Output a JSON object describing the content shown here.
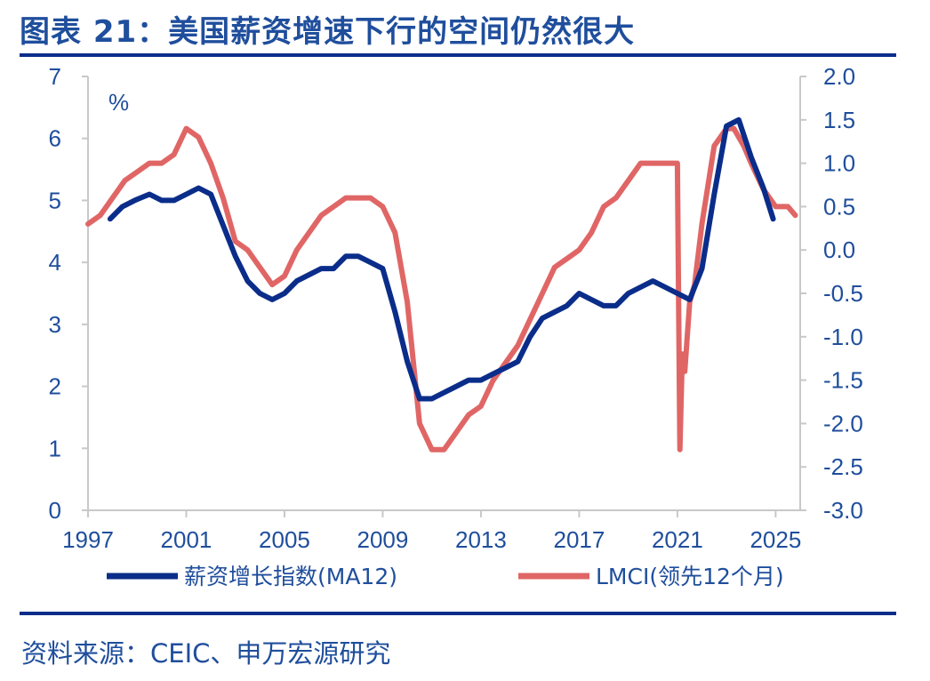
{
  "title": "图表 21：美国薪资增速下行的空间仍然很大",
  "source": "资料来源：CEIC、申万宏源研究",
  "chart_data": {
    "type": "line",
    "unit_label": "%",
    "x_ticks": [
      "1997",
      "2001",
      "2005",
      "2009",
      "2013",
      "2017",
      "2021",
      "2025"
    ],
    "x_range": [
      1997,
      2026
    ],
    "y_left": {
      "range": [
        0,
        7
      ],
      "ticks": [
        "0",
        "1",
        "2",
        "3",
        "4",
        "5",
        "6",
        "7"
      ]
    },
    "y_right": {
      "range": [
        -3.0,
        2.0
      ],
      "ticks": [
        "-3.0",
        "-2.5",
        "-2.0",
        "-1.5",
        "-1.0",
        "-0.5",
        "0.0",
        "0.5",
        "1.0",
        "1.5",
        "2.0"
      ]
    },
    "grid": false,
    "legend_position": "bottom",
    "series": [
      {
        "name": "薪资增长指数(MA12)",
        "axis": "left",
        "color": "#0b2d8a",
        "x": [
          1997.9,
          1998.4,
          1998.9,
          1999.5,
          2000.0,
          2000.5,
          2001.0,
          2001.5,
          2002.0,
          2002.5,
          2003.0,
          2003.5,
          2004.0,
          2004.5,
          2005.0,
          2005.5,
          2006.0,
          2006.5,
          2007.0,
          2007.5,
          2008.0,
          2008.5,
          2009.0,
          2009.5,
          2010.0,
          2010.5,
          2011.0,
          2011.5,
          2012.0,
          2012.5,
          2013.0,
          2013.5,
          2014.0,
          2014.5,
          2015.0,
          2015.5,
          2016.0,
          2016.5,
          2017.0,
          2017.5,
          2018.0,
          2018.5,
          2019.0,
          2019.5,
          2020.0,
          2020.5,
          2021.0,
          2021.5,
          2022.0,
          2022.5,
          2023.0,
          2023.5,
          2024.0,
          2024.5,
          2024.9
        ],
        "values": [
          4.7,
          4.9,
          5.0,
          5.1,
          5.0,
          5.0,
          5.1,
          5.2,
          5.1,
          4.6,
          4.1,
          3.7,
          3.5,
          3.4,
          3.5,
          3.7,
          3.8,
          3.9,
          3.9,
          4.1,
          4.1,
          4.0,
          3.9,
          3.2,
          2.4,
          1.8,
          1.8,
          1.9,
          2.0,
          2.1,
          2.1,
          2.2,
          2.3,
          2.4,
          2.8,
          3.1,
          3.2,
          3.3,
          3.5,
          3.4,
          3.3,
          3.3,
          3.5,
          3.6,
          3.7,
          3.6,
          3.5,
          3.4,
          3.9,
          5.1,
          6.2,
          6.3,
          5.7,
          5.2,
          4.7
        ]
      },
      {
        "name": "LMCI(领先12个月)",
        "axis": "right",
        "color": "#e06666",
        "x": [
          1997.0,
          1997.5,
          1998.0,
          1998.5,
          1999.0,
          1999.5,
          2000.0,
          2000.5,
          2001.0,
          2001.5,
          2002.0,
          2002.5,
          2003.0,
          2003.5,
          2004.0,
          2004.5,
          2005.0,
          2005.5,
          2006.0,
          2006.5,
          2007.0,
          2007.5,
          2008.0,
          2008.5,
          2009.0,
          2009.5,
          2010.0,
          2010.5,
          2011.0,
          2011.5,
          2012.0,
          2012.5,
          2013.0,
          2013.5,
          2014.0,
          2014.5,
          2015.0,
          2015.5,
          2016.0,
          2016.5,
          2017.0,
          2017.5,
          2018.0,
          2018.5,
          2019.0,
          2019.5,
          2020.0,
          2020.5,
          2021.0,
          2021.1,
          2021.2,
          2021.3,
          2021.5,
          2021.7,
          2022.0,
          2022.5,
          2023.0,
          2023.3,
          2023.7,
          2024.0,
          2024.5,
          2025.0,
          2025.5,
          2025.8
        ],
        "values": [
          0.3,
          0.4,
          0.6,
          0.8,
          0.9,
          1.0,
          1.0,
          1.1,
          1.4,
          1.3,
          1.0,
          0.6,
          0.1,
          0.0,
          -0.2,
          -0.4,
          -0.3,
          0.0,
          0.2,
          0.4,
          0.5,
          0.6,
          0.6,
          0.6,
          0.5,
          0.2,
          -0.6,
          -2.0,
          -2.3,
          -2.3,
          -2.1,
          -1.9,
          -1.8,
          -1.5,
          -1.3,
          -1.1,
          -0.8,
          -0.5,
          -0.2,
          -0.1,
          0.0,
          0.2,
          0.5,
          0.6,
          0.8,
          1.0,
          1.0,
          1.0,
          1.0,
          -2.3,
          -1.2,
          -1.4,
          -0.6,
          -0.4,
          0.3,
          1.2,
          1.4,
          1.4,
          1.2,
          1.0,
          0.7,
          0.5,
          0.5,
          0.4
        ]
      }
    ]
  }
}
